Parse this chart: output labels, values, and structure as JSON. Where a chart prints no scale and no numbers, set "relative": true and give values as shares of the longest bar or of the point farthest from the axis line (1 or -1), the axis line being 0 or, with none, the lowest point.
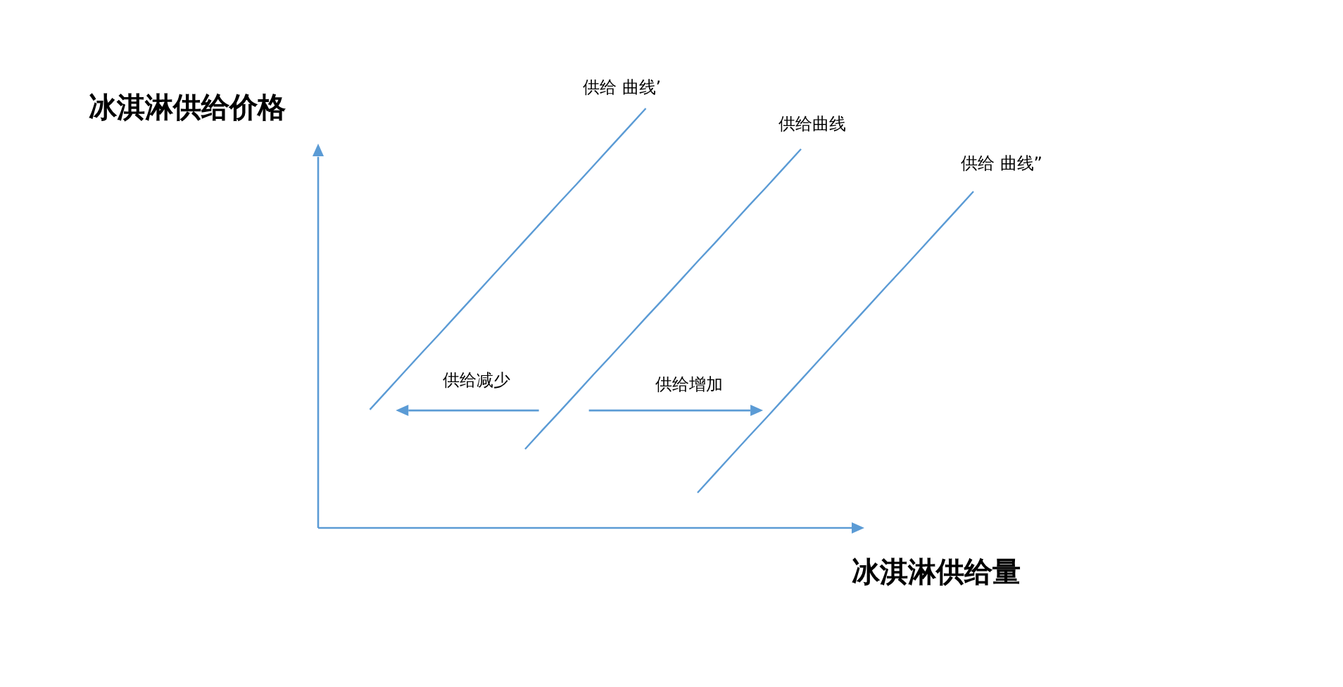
{
  "chart_data": {
    "type": "line",
    "relative": true,
    "xlabel": "冰淇淋供给量",
    "ylabel": "冰淇淋供给价格",
    "marker": "none",
    "line_style": "solid",
    "categories": [
      null,
      null,
      null,
      null,
      null,
      null,
      null,
      null,
      null,
      null,
      null,
      null,
      null,
      null,
      null,
      null,
      null,
      null,
      null,
      null,
      null,
      null,
      null,
      null,
      null,
      null,
      null,
      null,
      null,
      null,
      null,
      null,
      null,
      null,
      null,
      null,
      null,
      null,
      null
    ],
    "series": [
      {
        "name": "供给 曲线’",
        "color": "#5b9bd5",
        "values": [
          null,
          null,
          null,
          0.282,
          0.327,
          0.372,
          0.417,
          0.461,
          0.506,
          0.551,
          0.596,
          0.641,
          0.686,
          0.731,
          0.776,
          0.82,
          0.865,
          0.91,
          0.955,
          1,
          null,
          null,
          null,
          null,
          null,
          null,
          null,
          null,
          null,
          null,
          null,
          null,
          null,
          null,
          null,
          null,
          null,
          null,
          null
        ]
      },
      {
        "name": "供给曲线",
        "color": "#5b9bd5",
        "values": [
          null,
          null,
          null,
          null,
          null,
          null,
          null,
          null,
          null,
          null,
          null,
          null,
          0.188,
          0.233,
          0.277,
          0.322,
          0.367,
          0.411,
          0.456,
          0.501,
          0.545,
          0.59,
          0.635,
          0.679,
          0.724,
          0.769,
          0.813,
          0.858,
          0.903,
          null,
          null,
          null,
          null,
          null,
          null,
          null,
          null,
          null,
          null
        ]
      },
      {
        "name": "供给 曲线”",
        "color": "#5b9bd5",
        "values": [
          null,
          null,
          null,
          null,
          null,
          null,
          null,
          null,
          null,
          null,
          null,
          null,
          null,
          null,
          null,
          null,
          null,
          null,
          null,
          null,
          null,
          null,
          0.084,
          0.129,
          0.174,
          0.219,
          0.263,
          0.308,
          0.353,
          0.398,
          0.443,
          0.488,
          0.533,
          0.578,
          0.622,
          0.667,
          0.712,
          0.757,
          0.802
        ]
      }
    ],
    "annotations": [
      "供给减少",
      "供给增加"
    ]
  }
}
